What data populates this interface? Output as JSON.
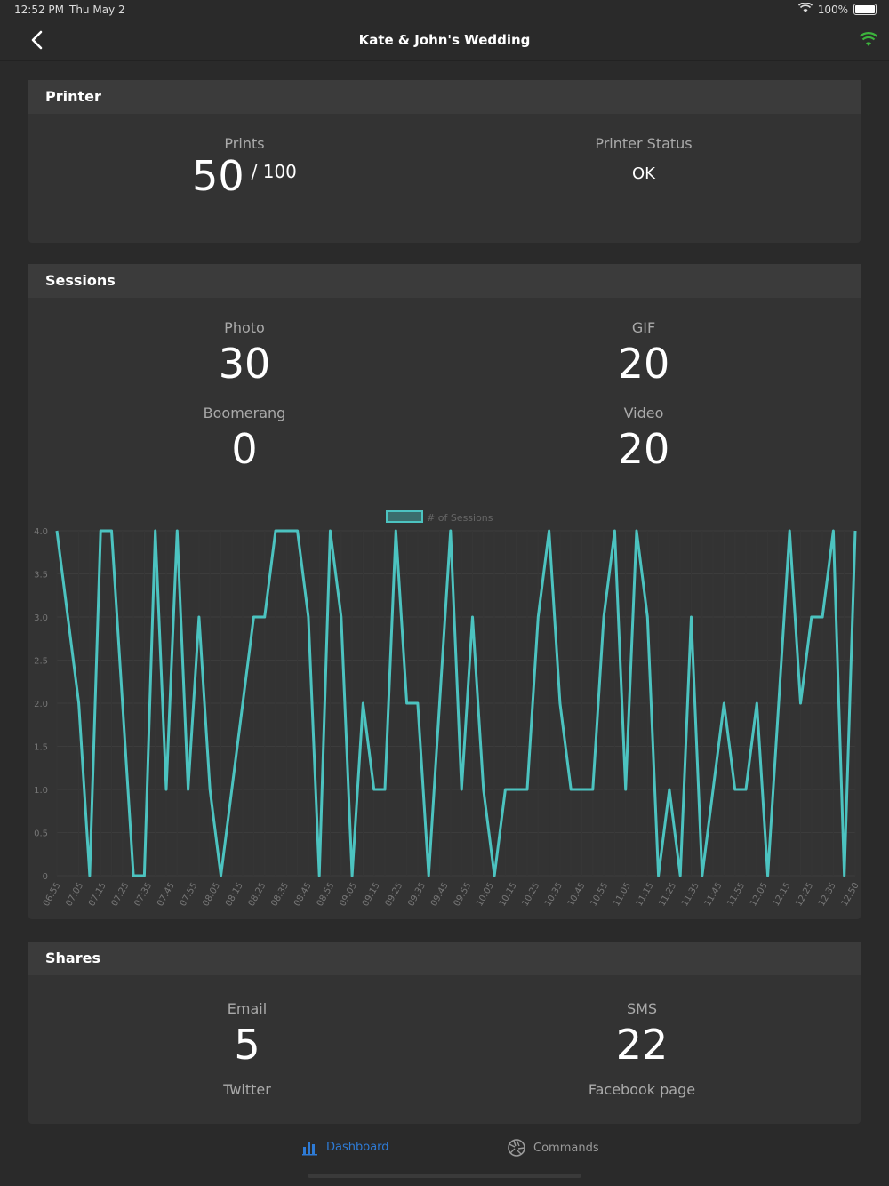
{
  "status_bar": {
    "time": "12:52 PM",
    "date": "Thu May 2",
    "battery": "100%"
  },
  "nav": {
    "title": "Kate & John's Wedding"
  },
  "printer": {
    "header": "Printer",
    "prints_label": "Prints",
    "prints_value": "50",
    "prints_total": "/ 100",
    "status_label": "Printer Status",
    "status_value": "OK"
  },
  "sessions": {
    "header": "Sessions",
    "photo_label": "Photo",
    "photo_value": "30",
    "gif_label": "GIF",
    "gif_value": "20",
    "boomerang_label": "Boomerang",
    "boomerang_value": "0",
    "video_label": "Video",
    "video_value": "20"
  },
  "shares": {
    "header": "Shares",
    "email_label": "Email",
    "email_value": "5",
    "sms_label": "SMS",
    "sms_value": "22",
    "twitter_label": "Twitter",
    "facebook_label": "Facebook page"
  },
  "tabs": {
    "dashboard": "Dashboard",
    "commands": "Commands"
  },
  "colors": {
    "accent": "#4cc3c0",
    "tab_active": "#2e7bd6",
    "wifi": "#3cb33c"
  },
  "chart_data": {
    "type": "line",
    "legend": "# of Sessions",
    "ylim": [
      0,
      4
    ],
    "yticks": [
      "0",
      "0.5",
      "1.0",
      "1.5",
      "2.0",
      "2.5",
      "3.0",
      "3.5",
      "4.0"
    ],
    "xtick_labels": [
      "06:55",
      "07:05",
      "07:15",
      "07:25",
      "07:35",
      "07:45",
      "07:55",
      "08:05",
      "08:15",
      "08:25",
      "08:35",
      "08:45",
      "08:55",
      "09:05",
      "09:15",
      "09:25",
      "09:35",
      "09:45",
      "09:55",
      "10:05",
      "10:15",
      "10:25",
      "10:35",
      "10:45",
      "10:55",
      "11:05",
      "11:15",
      "11:25",
      "11:35",
      "11:45",
      "11:55",
      "12:05",
      "12:15",
      "12:25",
      "12:35",
      "12:50"
    ],
    "series": [
      {
        "name": "# of Sessions",
        "values": [
          4,
          3,
          2,
          0,
          4,
          4,
          2,
          0,
          0,
          4,
          1,
          4,
          1,
          3,
          1,
          0,
          1,
          2,
          3,
          3,
          4,
          4,
          4,
          3,
          0,
          4,
          3,
          0,
          2,
          1,
          1,
          4,
          2,
          2,
          0,
          2,
          4,
          1,
          3,
          1,
          0,
          1,
          1,
          1,
          3,
          4,
          2,
          1,
          1,
          1,
          3,
          4,
          1,
          4,
          3,
          0,
          1,
          0,
          3,
          0,
          1,
          2,
          1,
          1,
          2,
          0,
          2,
          4,
          2,
          3,
          3,
          4,
          0,
          4
        ]
      }
    ]
  }
}
